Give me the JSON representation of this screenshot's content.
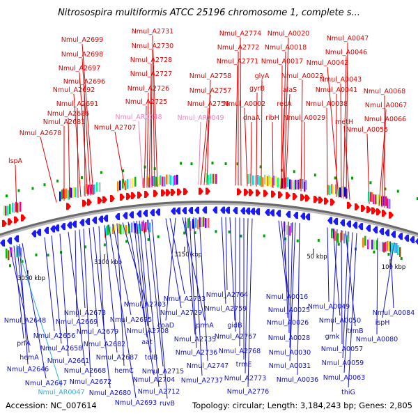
{
  "title": "Nitrosospira multiformis ATCC 25196 chromosome 1, complete s...",
  "footer": {
    "accession": "Accession: NC_007614",
    "summary": "Topology: circular; Length: 3,184,243 bp; Genes: 2,805"
  },
  "colors": {
    "forward_label": "#e00000",
    "reverse_label": "#1010c8",
    "pseudo_forward": "#f080c0",
    "pseudo_reverse": "#30b0d8",
    "forward_arrow": "#ff0000",
    "reverse_arrow": "#1a1aff",
    "backbone": "#7a7a7a"
  },
  "ruler_ticks": [
    {
      "label": "3050 kbp",
      "pos_kbp": 3050
    },
    {
      "label": "3100 kbp",
      "pos_kbp": 3100
    },
    {
      "label": "3150 kbp",
      "pos_kbp": 3150
    },
    {
      "label": "50 kbp",
      "pos_kbp": 50
    },
    {
      "label": "100 kbp",
      "pos_kbp": 100
    }
  ],
  "top_labels": [
    {
      "text": "lspA",
      "kind": "gene"
    },
    {
      "text": "Nmul_A2678",
      "kind": "gene"
    },
    {
      "text": "Nmul_A2681",
      "kind": "gene"
    },
    {
      "text": "Nmul_A2686",
      "kind": "gene"
    },
    {
      "text": "Nmul_A2691",
      "kind": "gene"
    },
    {
      "text": "Nmul_A2692",
      "kind": "gene"
    },
    {
      "text": "Nmul_A2696",
      "kind": "gene"
    },
    {
      "text": "Nmul_A2697",
      "kind": "gene"
    },
    {
      "text": "Nmul_A2698",
      "kind": "gene"
    },
    {
      "text": "Nmul_A2699",
      "kind": "gene"
    },
    {
      "text": "Nmul_A2707",
      "kind": "gene"
    },
    {
      "text": "Nmul_AR0048",
      "kind": "pseudo"
    },
    {
      "text": "Nmul_A2725",
      "kind": "gene"
    },
    {
      "text": "Nmul_A2726",
      "kind": "gene"
    },
    {
      "text": "Nmul_A2727",
      "kind": "gene"
    },
    {
      "text": "Nmul_A2728",
      "kind": "gene"
    },
    {
      "text": "Nmul_A2730",
      "kind": "gene"
    },
    {
      "text": "Nmul_A2731",
      "kind": "gene"
    },
    {
      "text": "Nmul_AR0049",
      "kind": "pseudo"
    },
    {
      "text": "Nmul_A2756",
      "kind": "gene"
    },
    {
      "text": "Nmul_A2757",
      "kind": "gene"
    },
    {
      "text": "Nmul_A2758",
      "kind": "gene"
    },
    {
      "text": "Nmul_A2771",
      "kind": "gene"
    },
    {
      "text": "Nmul_A2772",
      "kind": "gene"
    },
    {
      "text": "Nmul_A2774",
      "kind": "gene"
    },
    {
      "text": "Nmul_A0002",
      "kind": "gene"
    },
    {
      "text": "dnaA",
      "kind": "gene"
    },
    {
      "text": "gyrB",
      "kind": "gene"
    },
    {
      "text": "glyA",
      "kind": "gene"
    },
    {
      "text": "ribH",
      "kind": "gene"
    },
    {
      "text": "recA",
      "kind": "gene"
    },
    {
      "text": "alaS",
      "kind": "gene"
    },
    {
      "text": "Nmul_A0017",
      "kind": "gene"
    },
    {
      "text": "Nmul_A0018",
      "kind": "gene"
    },
    {
      "text": "Nmul_A0020",
      "kind": "gene"
    },
    {
      "text": "Nmul_A0023",
      "kind": "gene"
    },
    {
      "text": "Nmul_A0029",
      "kind": "gene"
    },
    {
      "text": "Nmul_A0038",
      "kind": "gene"
    },
    {
      "text": "Nmul_A0041",
      "kind": "gene"
    },
    {
      "text": "Nmul_A0042",
      "kind": "gene"
    },
    {
      "text": "Nmul_A0043",
      "kind": "gene"
    },
    {
      "text": "Nmul_A0046",
      "kind": "gene"
    },
    {
      "text": "Nmul_A0047",
      "kind": "gene"
    },
    {
      "text": "metH",
      "kind": "gene"
    },
    {
      "text": "Nmul_A0055",
      "kind": "gene"
    },
    {
      "text": "Nmul_A0066",
      "kind": "gene"
    },
    {
      "text": "Nmul_A0067",
      "kind": "gene"
    },
    {
      "text": "Nmul_A0068",
      "kind": "gene"
    }
  ],
  "bottom_labels": [
    {
      "text": "Nmul_A2648",
      "kind": "gene"
    },
    {
      "text": "prfA",
      "kind": "gene"
    },
    {
      "text": "hemA",
      "kind": "gene"
    },
    {
      "text": "Nmul_A2646",
      "kind": "gene"
    },
    {
      "text": "Nmul_A2647",
      "kind": "gene"
    },
    {
      "text": "Nmul_AR0047",
      "kind": "pseudo"
    },
    {
      "text": "Nmul_A2656",
      "kind": "gene"
    },
    {
      "text": "Nmul_A2658",
      "kind": "gene"
    },
    {
      "text": "Nmul_A2661",
      "kind": "gene"
    },
    {
      "text": "Nmul_A2668",
      "kind": "gene"
    },
    {
      "text": "Nmul_A2669",
      "kind": "gene"
    },
    {
      "text": "Nmul_A2673",
      "kind": "gene"
    },
    {
      "text": "Nmul_A2672",
      "kind": "gene"
    },
    {
      "text": "Nmul_A2679",
      "kind": "gene"
    },
    {
      "text": "Nmul_A2680",
      "kind": "gene"
    },
    {
      "text": "Nmul_A2682",
      "kind": "gene"
    },
    {
      "text": "Nmul_A2687",
      "kind": "gene"
    },
    {
      "text": "Nmul_A2693",
      "kind": "gene"
    },
    {
      "text": "Nmul_A2695",
      "kind": "gene"
    },
    {
      "text": "hemC",
      "kind": "gene"
    },
    {
      "text": "Nmul_A2703",
      "kind": "gene"
    },
    {
      "text": "Nmul_A2704",
      "kind": "gene"
    },
    {
      "text": "aat",
      "kind": "gene"
    },
    {
      "text": "Nmul_A2708",
      "kind": "gene"
    },
    {
      "text": "tolB",
      "kind": "gene"
    },
    {
      "text": "Nmul_A2712",
      "kind": "gene"
    },
    {
      "text": "Nmul_A2715",
      "kind": "gene"
    },
    {
      "text": "ruvB",
      "kind": "gene"
    },
    {
      "text": "Nmul_A2729",
      "kind": "gene"
    },
    {
      "text": "Nmul_A2733",
      "kind": "gene"
    },
    {
      "text": "coaD",
      "kind": "gene"
    },
    {
      "text": "prmA",
      "kind": "gene"
    },
    {
      "text": "Nmul_A2735",
      "kind": "gene"
    },
    {
      "text": "Nmul_A2736",
      "kind": "gene"
    },
    {
      "text": "Nmul_A2737",
      "kind": "gene"
    },
    {
      "text": "Nmul_A2747",
      "kind": "gene"
    },
    {
      "text": "Nmul_A2759",
      "kind": "gene"
    },
    {
      "text": "Nmul_A2764",
      "kind": "gene"
    },
    {
      "text": "gidB",
      "kind": "gene"
    },
    {
      "text": "Nmul_A2767",
      "kind": "gene"
    },
    {
      "text": "Nmul_A2768",
      "kind": "gene"
    },
    {
      "text": "trmE",
      "kind": "gene"
    },
    {
      "text": "Nmul_A2773",
      "kind": "gene"
    },
    {
      "text": "Nmul_A2776",
      "kind": "gene"
    },
    {
      "text": "Nmul_A0016",
      "kind": "gene"
    },
    {
      "text": "Nmul_A0025",
      "kind": "gene"
    },
    {
      "text": "Nmul_A0026",
      "kind": "gene"
    },
    {
      "text": "Nmul_A0028",
      "kind": "gene"
    },
    {
      "text": "Nmul_A0030",
      "kind": "gene"
    },
    {
      "text": "Nmul_A0031",
      "kind": "gene"
    },
    {
      "text": "Nmul_A0036",
      "kind": "gene"
    },
    {
      "text": "Nmul_A0049",
      "kind": "gene"
    },
    {
      "text": "Nmul_A0050",
      "kind": "gene"
    },
    {
      "text": "gmk",
      "kind": "gene"
    },
    {
      "text": "Nmul_A0057",
      "kind": "gene"
    },
    {
      "text": "trmB",
      "kind": "gene"
    },
    {
      "text": "Nmul_A0059",
      "kind": "gene"
    },
    {
      "text": "Nmul_A0063",
      "kind": "gene"
    },
    {
      "text": "thiG",
      "kind": "gene"
    },
    {
      "text": "Nmul_A0080",
      "kind": "gene"
    },
    {
      "text": "Nmul_A0084",
      "kind": "gene"
    },
    {
      "text": "ispH",
      "kind": "gene"
    }
  ]
}
